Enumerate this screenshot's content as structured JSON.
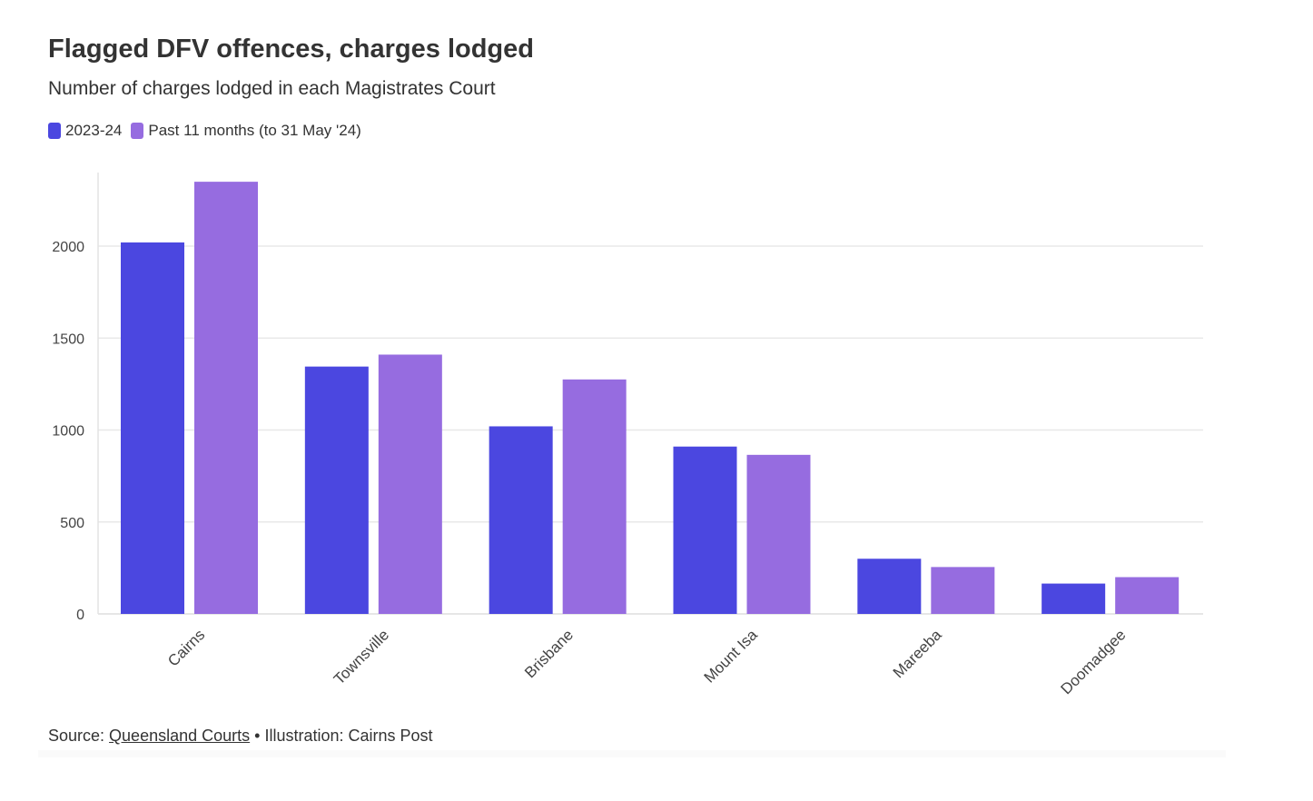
{
  "chart_data": {
    "type": "bar",
    "title": "Flagged DFV offences, charges lodged",
    "subtitle": "Number of charges lodged in each Magistrates Court",
    "categories": [
      "Cairns",
      "Townsville",
      "Brisbane",
      "Mount Isa",
      "Mareeba",
      "Doomadgee"
    ],
    "series": [
      {
        "name": "2023-24",
        "color": "#4b47e0",
        "values": [
          2020,
          1345,
          1020,
          910,
          300,
          165
        ]
      },
      {
        "name": "Past 11 months (to 31 May '24)",
        "color": "#966ce0",
        "values": [
          2350,
          1410,
          1275,
          865,
          255,
          200
        ]
      }
    ],
    "yticks": [
      0,
      500,
      1000,
      1500,
      2000
    ],
    "ylim": [
      0,
      2400
    ],
    "xlabel": "",
    "ylabel": "",
    "grid": true,
    "legend_position": "top-left"
  },
  "footer": {
    "source_prefix": "Source: ",
    "source_link": "Queensland Courts",
    "separator": " • ",
    "credit": "Illustration: Cairns Post"
  }
}
